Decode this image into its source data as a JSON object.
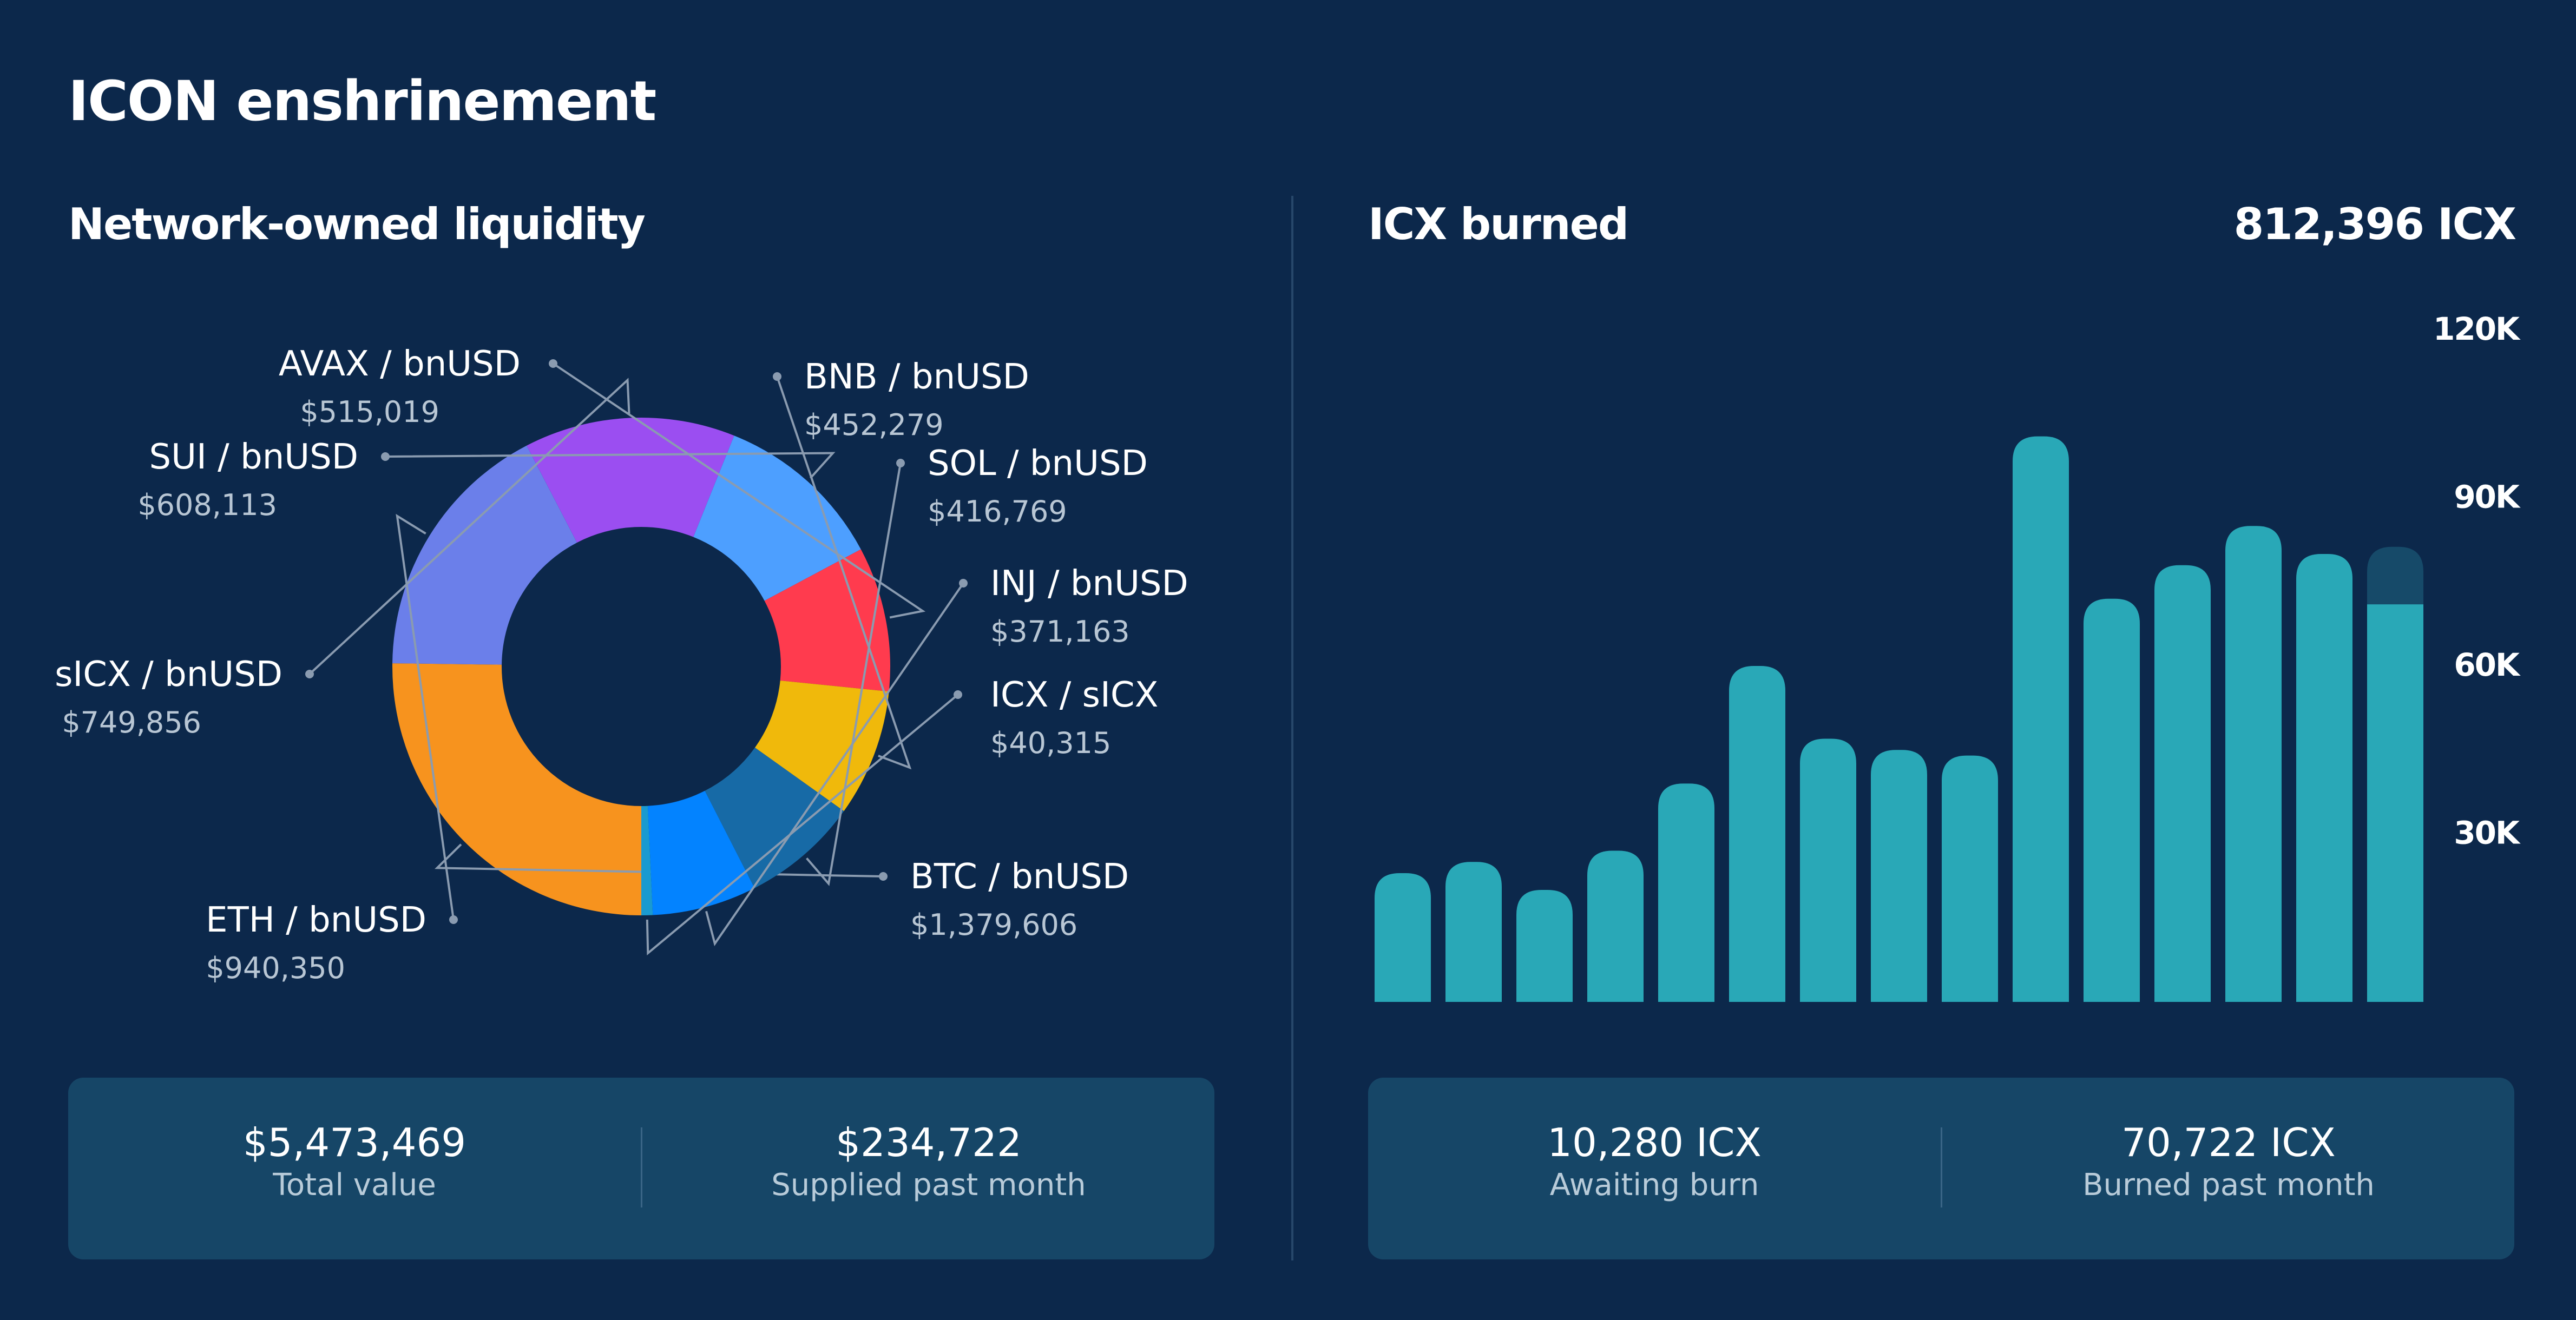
{
  "page": {
    "title": "ICON enshrinement"
  },
  "liquidity": {
    "title": "Network-owned liquidity",
    "stats": [
      {
        "value": "$5,473,469",
        "label": "Total value"
      },
      {
        "value": "$234,722",
        "label": "Supplied past month"
      }
    ]
  },
  "burn": {
    "title": "ICX burned",
    "total": "812,396 ICX",
    "stats": [
      {
        "value": "10,280 ICX",
        "label": "Awaiting burn"
      },
      {
        "value": "70,722 ICX",
        "label": "Burned past month"
      }
    ]
  },
  "chart_data": [
    {
      "type": "pie",
      "variant": "donut",
      "title": "Network-owned liquidity",
      "slices": [
        {
          "name": "BTC / bnUSD",
          "value": 1379606,
          "label": "$1,379,606",
          "color": "#f7931e"
        },
        {
          "name": "ETH / bnUSD",
          "value": 940350,
          "label": "$940,350",
          "color": "#6b7fea"
        },
        {
          "name": "sICX / bnUSD",
          "value": 749856,
          "label": "$749,856",
          "color": "#9b4ef1"
        },
        {
          "name": "SUI / bnUSD",
          "value": 608113,
          "label": "$608,113",
          "color": "#4d9fff"
        },
        {
          "name": "AVAX / bnUSD",
          "value": 515019,
          "label": "$515,019",
          "color": "#ff3b4e"
        },
        {
          "name": "BNB / bnUSD",
          "value": 452279,
          "label": "$452,279",
          "color": "#f0b90b"
        },
        {
          "name": "SOL / bnUSD",
          "value": 416769,
          "label": "$416,769",
          "color": "#176aa6"
        },
        {
          "name": "INJ / bnUSD",
          "value": 371163,
          "label": "$371,163",
          "color": "#0383ff"
        },
        {
          "name": "ICX / sICX",
          "value": 40315,
          "label": "$40,315",
          "color": "#1a9ad0"
        }
      ]
    },
    {
      "type": "bar",
      "title": "ICX burned",
      "y_ticks": [
        {
          "value": 30000,
          "label": "30K"
        },
        {
          "value": 60000,
          "label": "60K"
        },
        {
          "value": 90000,
          "label": "90K"
        },
        {
          "value": 120000,
          "label": "120K"
        }
      ],
      "ylim": [
        0,
        120000
      ],
      "values": [
        23000,
        25000,
        20000,
        27000,
        39000,
        60000,
        47000,
        45000,
        44000,
        101000,
        72000,
        78000,
        85000,
        80000,
        71000
      ],
      "pending_value": 10280,
      "bar_color": "#29a8b7",
      "pending_color": "#164a69"
    }
  ]
}
